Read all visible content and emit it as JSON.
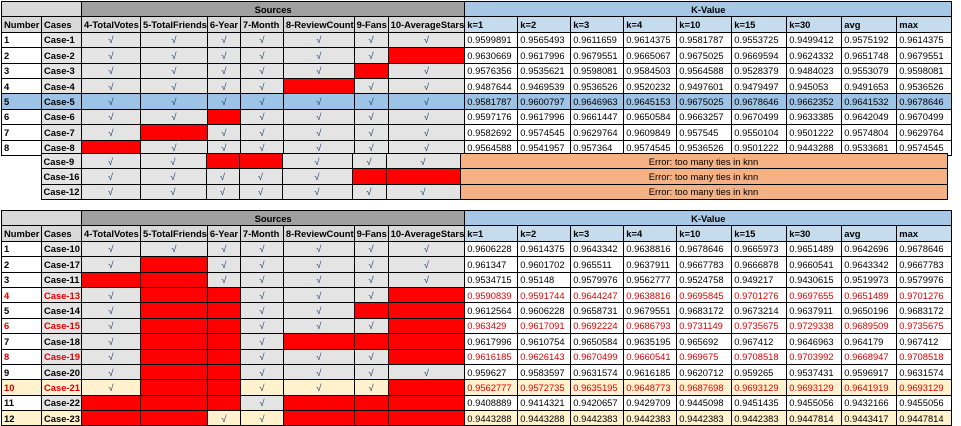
{
  "headers": {
    "sources": "Sources",
    "kvalue": "K-Value",
    "number": "Number",
    "cases": "Cases",
    "source_cols": [
      "4-TotalVotes",
      "5-TotalFriends",
      "6-Year",
      "7-Month",
      "8-ReviewCount",
      "9-Fans",
      "10-AverageStars"
    ],
    "k_cols": [
      "k=1",
      "k=2",
      "k=3",
      "k=4",
      "k=10",
      "k=15",
      "k=30",
      "avg",
      "max"
    ]
  },
  "check": "√",
  "table1": [
    {
      "n": "1",
      "case": "Case-1",
      "src": [
        1,
        1,
        1,
        1,
        1,
        1,
        1
      ],
      "vals": [
        "0.9599891",
        "0.9565493",
        "0.9611659",
        "0.9614375",
        "0.9581787",
        "0.9553725",
        "0.9499412",
        "0.9575192",
        "0.9614375"
      ]
    },
    {
      "n": "2",
      "case": "Case-2",
      "src": [
        1,
        1,
        1,
        1,
        1,
        1,
        0
      ],
      "vals": [
        "0.9630669",
        "0.9617996",
        "0.9679551",
        "0.9665067",
        "0.9675025",
        "0.9669594",
        "0.9624332",
        "0.9651748",
        "0.9679551"
      ]
    },
    {
      "n": "3",
      "case": "Case-3",
      "src": [
        1,
        1,
        1,
        1,
        1,
        0,
        1
      ],
      "vals": [
        "0.9576356",
        "0.9535621",
        "0.9598081",
        "0.9584503",
        "0.9564588",
        "0.9528379",
        "0.9484023",
        "0.9553079",
        "0.9598081"
      ]
    },
    {
      "n": "4",
      "case": "Case-4",
      "src": [
        1,
        1,
        1,
        1,
        0,
        1,
        1
      ],
      "vals": [
        "0.9487644",
        "0.9469539",
        "0.9536526",
        "0.9520232",
        "0.9497601",
        "0.9479497",
        "0.945053",
        "0.9491653",
        "0.9536526"
      ]
    },
    {
      "n": "5",
      "case": "Case-5",
      "src": [
        1,
        1,
        1,
        1,
        1,
        1,
        1
      ],
      "highlight": "blue",
      "vals": [
        "0.9581787",
        "0.9600797",
        "0.9646963",
        "0.9645153",
        "0.9675025",
        "0.9678646",
        "0.9662352",
        "0.9641532",
        "0.9678646"
      ]
    },
    {
      "n": "6",
      "case": "Case-6",
      "src": [
        1,
        1,
        0,
        1,
        1,
        1,
        1
      ],
      "vals": [
        "0.9597176",
        "0.9617996",
        "0.9661447",
        "0.9650584",
        "0.9663257",
        "0.9670499",
        "0.9633385",
        "0.9642049",
        "0.9670499"
      ]
    },
    {
      "n": "7",
      "case": "Case-7",
      "src": [
        1,
        0,
        1,
        1,
        1,
        1,
        1
      ],
      "vals": [
        "0.9582692",
        "0.9574545",
        "0.9629764",
        "0.9609849",
        "0.957545",
        "0.9550104",
        "0.9501222",
        "0.9574804",
        "0.9629764"
      ]
    },
    {
      "n": "8",
      "case": "Case-8",
      "src": [
        0,
        1,
        1,
        1,
        1,
        1,
        1
      ],
      "vals": [
        "0.9564588",
        "0.9541957",
        "0.957364",
        "0.9574545",
        "0.9536526",
        "0.9501222",
        "0.9443288",
        "0.9533681",
        "0.9574545"
      ]
    }
  ],
  "table2": [
    {
      "case": "Case-9",
      "src": [
        1,
        1,
        0,
        0,
        1,
        1,
        1
      ],
      "error": "Error: too many ties in knn"
    },
    {
      "case": "Case-16",
      "src": [
        1,
        1,
        1,
        1,
        1,
        0,
        0
      ],
      "error": "Error: too many ties in knn"
    },
    {
      "case": "Case-12",
      "src": [
        1,
        1,
        1,
        1,
        1,
        1,
        1
      ],
      "error": "Error: too many ties in knn"
    }
  ],
  "table3": [
    {
      "n": "1",
      "case": "Case-10",
      "src": [
        1,
        1,
        1,
        1,
        1,
        1,
        1
      ],
      "vals": [
        "0.9606228",
        "0.9614375",
        "0.9643342",
        "0.9638816",
        "0.9678646",
        "0.9665973",
        "0.9651489",
        "0.9642696",
        "0.9678646"
      ]
    },
    {
      "n": "2",
      "case": "Case-17",
      "src": [
        1,
        0,
        1,
        1,
        1,
        1,
        1
      ],
      "vals": [
        "0.961347",
        "0.9601702",
        "0.965511",
        "0.9637911",
        "0.9667783",
        "0.9666878",
        "0.9660541",
        "0.9643342",
        "0.9667783"
      ]
    },
    {
      "n": "3",
      "case": "Case-11",
      "src": [
        0,
        0,
        1,
        1,
        1,
        1,
        1
      ],
      "vals": [
        "0.9534715",
        "0.95148",
        "0.9579976",
        "0.9562777",
        "0.9524758",
        "0.949217",
        "0.9430615",
        "0.9519973",
        "0.9579976"
      ]
    },
    {
      "n": "4",
      "case": "Case-13",
      "src": [
        1,
        0,
        0,
        1,
        1,
        1,
        0
      ],
      "red": true,
      "vals": [
        "0.9590839",
        "0.9591744",
        "0.9644247",
        "0.9638816",
        "0.9695845",
        "0.9701276",
        "0.9697655",
        "0.9651489",
        "0.9701276"
      ]
    },
    {
      "n": "5",
      "case": "Case-14",
      "src": [
        1,
        0,
        0,
        1,
        1,
        0,
        0
      ],
      "vals": [
        "0.9612564",
        "0.9606228",
        "0.9658731",
        "0.9679551",
        "0.9683172",
        "0.9673214",
        "0.9637911",
        "0.9650196",
        "0.9683172"
      ]
    },
    {
      "n": "6",
      "case": "Case-15",
      "src": [
        1,
        0,
        0,
        1,
        1,
        1,
        0
      ],
      "red": true,
      "vals": [
        "0.963429",
        "0.9617091",
        "0.9692224",
        "0.9686793",
        "0.9731149",
        "0.9735675",
        "0.9729338",
        "0.9689509",
        "0.9735675"
      ]
    },
    {
      "n": "7",
      "case": "Case-18",
      "src": [
        1,
        0,
        0,
        1,
        0,
        0,
        0
      ],
      "vals": [
        "0.9617996",
        "0.9610754",
        "0.9650584",
        "0.9635195",
        "0.965692",
        "0.967412",
        "0.9646963",
        "0.964179",
        "0.967412"
      ]
    },
    {
      "n": "8",
      "case": "Case-19",
      "src": [
        1,
        0,
        0,
        1,
        1,
        1,
        0
      ],
      "red": true,
      "vals": [
        "0.9616185",
        "0.9626143",
        "0.9670499",
        "0.9660541",
        "0.969675",
        "0.9708518",
        "0.9703992",
        "0.9668947",
        "0.9708518"
      ]
    },
    {
      "n": "9",
      "case": "Case-20",
      "src": [
        1,
        0,
        0,
        1,
        1,
        1,
        1
      ],
      "vals": [
        "0.959627",
        "0.9583597",
        "0.9631574",
        "0.9616185",
        "0.9620712",
        "0.959265",
        "0.9537431",
        "0.9596917",
        "0.9631574"
      ]
    },
    {
      "n": "10",
      "case": "Case-21",
      "src": [
        1,
        0,
        0,
        1,
        1,
        1,
        0
      ],
      "red": true,
      "highlight": "yellow",
      "vals": [
        "0.9562777",
        "0.9572735",
        "0.9635195",
        "0.9648773",
        "0.9687698",
        "0.9693129",
        "0.9693129",
        "0.9641919",
        "0.9693129"
      ]
    },
    {
      "n": "11",
      "case": "Case-22",
      "src": [
        0,
        0,
        0,
        1,
        0,
        0,
        0
      ],
      "vals": [
        "0.9408889",
        "0.9414321",
        "0.9420657",
        "0.9429709",
        "0.9445098",
        "0.9451435",
        "0.9455056",
        "0.9432166",
        "0.9455056"
      ]
    },
    {
      "n": "12",
      "case": "Case-23",
      "src": [
        0,
        0,
        1,
        1,
        0,
        0,
        0
      ],
      "highlight": "yellow",
      "vals": [
        "0.9443288",
        "0.9443288",
        "0.9442383",
        "0.9442383",
        "0.9442383",
        "0.9442383",
        "0.9447814",
        "0.9443417",
        "0.9447814"
      ]
    }
  ]
}
